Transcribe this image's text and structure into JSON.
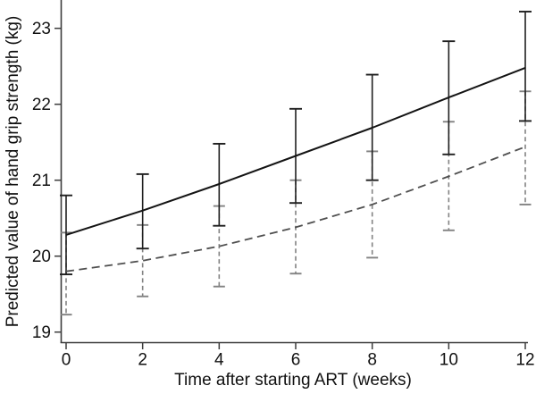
{
  "chart_data": {
    "type": "line",
    "title": "",
    "xlabel": "Time after starting ART (weeks)",
    "ylabel": "Predicted value of hand grip strength (kg)",
    "x_ticks": [
      "0",
      "2",
      "4",
      "6",
      "8",
      "10",
      "12"
    ],
    "x_tick_values": [
      0,
      2,
      4,
      6,
      8,
      10,
      12
    ],
    "y_ticks": [
      "19",
      "20",
      "21",
      "22",
      "23"
    ],
    "y_tick_values": [
      19,
      20,
      21,
      22,
      23
    ],
    "xlim": [
      0,
      12
    ],
    "ylim": [
      18.95,
      23.4
    ],
    "grid": false,
    "legend": "none",
    "background": "#ffffff",
    "axis_color": "#3c3c3c",
    "text_color": "#111111",
    "series": [
      {
        "name": "solid-group",
        "line_style": "solid",
        "color": "#141414",
        "error_bar_color": "#1f1f1f",
        "x": [
          0,
          2,
          4,
          6,
          8,
          10,
          12
        ],
        "y": [
          20.28,
          20.6,
          20.95,
          21.32,
          21.69,
          22.09,
          22.48
        ],
        "ci_low": [
          19.76,
          20.1,
          20.4,
          20.7,
          21.0,
          21.34,
          21.78
        ],
        "ci_high": [
          20.8,
          21.08,
          21.48,
          21.94,
          22.39,
          22.83,
          23.22
        ]
      },
      {
        "name": "dashed-group",
        "line_style": "dashed",
        "color": "#4f4f4f",
        "error_bar_color": "#828282",
        "x": [
          0,
          2,
          4,
          6,
          8,
          10,
          12
        ],
        "y": [
          19.8,
          19.94,
          20.13,
          20.38,
          20.68,
          21.05,
          21.44
        ],
        "ci_low": [
          19.23,
          19.47,
          19.6,
          19.77,
          19.98,
          20.34,
          20.68
        ],
        "ci_high": [
          20.31,
          20.41,
          20.66,
          21.0,
          21.38,
          21.77,
          22.17
        ]
      }
    ]
  }
}
